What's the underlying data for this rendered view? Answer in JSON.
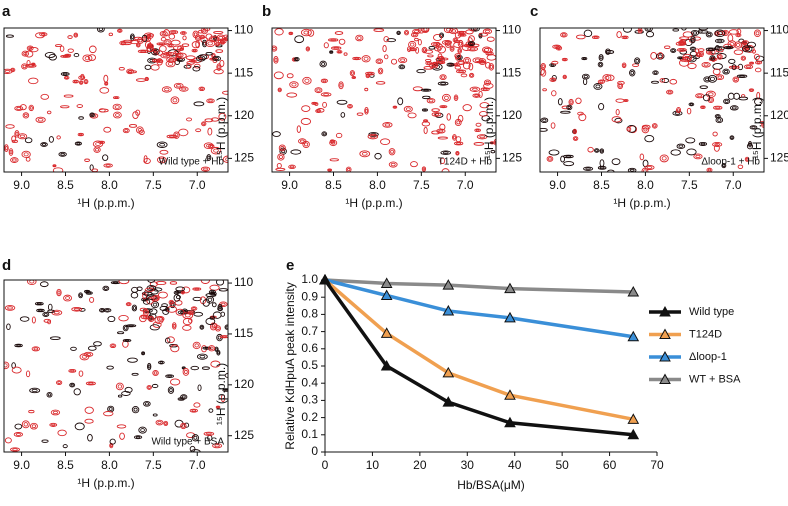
{
  "chart_data": [
    {
      "type": "nmr",
      "panel_label": "a",
      "annotation": "Wild type + Hb",
      "xlabel": "¹H (p.p.m.)",
      "ylabel": "¹⁵H (p.p.m.)",
      "xlim": [
        9.2,
        6.65
      ],
      "xticks": [
        {
          "value": 9,
          "label": "9.0"
        },
        8.5,
        {
          "value": 8,
          "label": "8.0"
        },
        7.5,
        {
          "value": 7,
          "label": "7.0"
        }
      ],
      "ylim": [
        109.7,
        126.6
      ],
      "yticks": [
        110,
        115,
        120,
        125
      ]
    },
    {
      "type": "nmr",
      "panel_label": "b",
      "annotation": "T124D + Hb",
      "xlabel": "¹H (p.p.m.)",
      "ylabel": "¹⁵H (p.p.m.)",
      "xlim": [
        9.2,
        6.65
      ],
      "xticks": [
        {
          "value": 9,
          "label": "9.0"
        },
        8.5,
        {
          "value": 8,
          "label": "8.0"
        },
        7.5,
        {
          "value": 7,
          "label": "7.0"
        }
      ],
      "ylim": [
        109.7,
        126.6
      ],
      "yticks": [
        110,
        115,
        120,
        125
      ]
    },
    {
      "type": "nmr",
      "panel_label": "c",
      "annotation": "Δloop-1 + Hb",
      "xlabel": "¹H (p.p.m.)",
      "ylabel": "¹⁵H (p.p.m.)",
      "xlim": [
        9.2,
        6.65
      ],
      "xticks": [
        {
          "value": 9,
          "label": "9.0"
        },
        8.5,
        {
          "value": 8,
          "label": "8.0"
        },
        7.5,
        {
          "value": 7,
          "label": "7.0"
        }
      ],
      "ylim": [
        109.7,
        126.6
      ],
      "yticks": [
        110,
        115,
        120,
        125
      ]
    },
    {
      "type": "nmr",
      "panel_label": "d",
      "annotation": "Wild type + BSA",
      "xlabel": "¹H (p.p.m.)",
      "ylabel": "¹⁵H (p.p.m.)",
      "xlim": [
        9.2,
        6.65
      ],
      "xticks": [
        {
          "value": 9,
          "label": "9.0"
        },
        8.5,
        {
          "value": 8,
          "label": "8.0"
        },
        7.5,
        {
          "value": 7,
          "label": "7.0"
        }
      ],
      "ylim": [
        109.7,
        126.6
      ],
      "yticks": [
        110,
        115,
        120,
        125
      ]
    },
    {
      "type": "line",
      "panel_label": "e",
      "xlabel": "Hb/BSA(μM)",
      "ylabel": "Relative KdHpuA peak intensity",
      "x": [
        0,
        13,
        26,
        39,
        65
      ],
      "series": [
        {
          "name": "Wild type",
          "color": "#111111",
          "values": [
            1.0,
            0.5,
            0.29,
            0.17,
            0.1
          ]
        },
        {
          "name": "T124D",
          "color": "#f0a050",
          "values": [
            1.0,
            0.69,
            0.46,
            0.33,
            0.19
          ]
        },
        {
          "name": "Δloop-1",
          "color": "#3a8fd8",
          "values": [
            1.0,
            0.91,
            0.82,
            0.78,
            0.67
          ]
        },
        {
          "name": "WT + BSA",
          "color": "#8a8a8a",
          "values": [
            1.0,
            0.98,
            0.97,
            0.95,
            0.93
          ]
        }
      ],
      "xlim": [
        0,
        70
      ],
      "xticks": [
        0,
        10,
        20,
        30,
        40,
        50,
        60,
        70
      ],
      "ylim": [
        0,
        1
      ],
      "yticks": [
        0,
        0.1,
        0.2,
        0.3,
        0.4,
        0.5,
        0.6,
        0.7,
        0.8,
        0.9,
        {
          "value": 1,
          "label": "1.0"
        }
      ],
      "legend": "right"
    }
  ]
}
